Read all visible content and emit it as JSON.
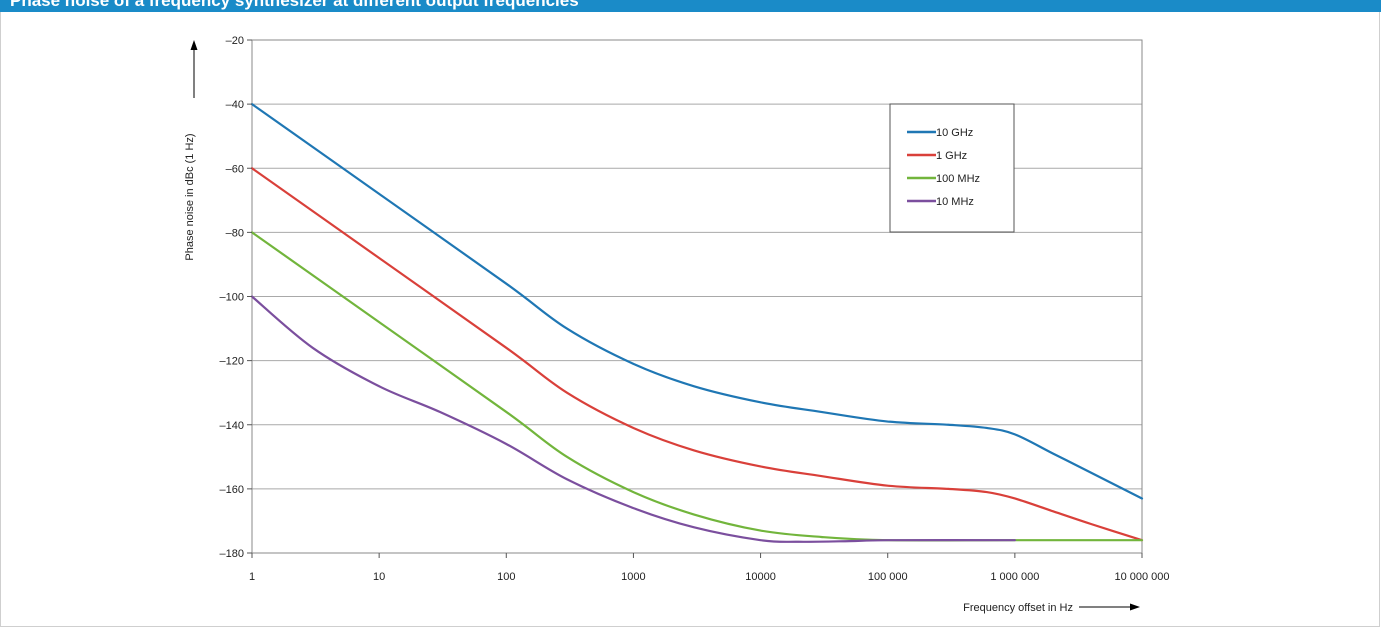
{
  "header": {
    "title": "Phase noise of a frequency synthesizer at different output frequencies"
  },
  "colors": {
    "header_bg": "#1a8bc8",
    "gridline": "#a9a9a9",
    "plot_border": "#8a8a8a"
  },
  "chart_data": {
    "type": "line",
    "title": "",
    "xlabel": "Frequency offset in Hz",
    "ylabel": "Phase noise in dBc (1 Hz)",
    "xscale": "log",
    "xlim": [
      1,
      10000000
    ],
    "ylim": [
      -180,
      -20
    ],
    "grid": "horizontal",
    "legend_position": "top-right",
    "x_ticks": [
      1,
      10,
      100,
      1000,
      10000,
      100000,
      1000000,
      10000000
    ],
    "x_tick_labels": [
      "1",
      "10",
      "100",
      "1000",
      "10000",
      "100 000",
      "1 000 000",
      "10 000 000"
    ],
    "y_ticks": [
      -20,
      -40,
      -60,
      -80,
      -100,
      -120,
      -140,
      -160,
      -180
    ],
    "y_tick_labels": [
      "–20",
      "–40",
      "–60",
      "–80",
      "–100",
      "–120",
      "–140",
      "–160",
      "–180"
    ],
    "series": [
      {
        "name": "10 GHz",
        "color": "#1f77b4",
        "x": [
          1,
          10,
          100,
          300,
          1000,
          3000,
          10000,
          30000,
          100000,
          300000,
          600000,
          1000000,
          2000000,
          4000000,
          10000000
        ],
        "y": [
          -40,
          -68,
          -96,
          -110,
          -121,
          -128,
          -133,
          -136,
          -139,
          -140,
          -141,
          -143,
          -149,
          -155,
          -163
        ]
      },
      {
        "name": "1 GHz",
        "color": "#d9403a",
        "x": [
          1,
          10,
          100,
          300,
          1000,
          3000,
          10000,
          30000,
          100000,
          300000,
          600000,
          1000000,
          2000000,
          4000000,
          10000000
        ],
        "y": [
          -60,
          -88,
          -116,
          -130,
          -141,
          -148,
          -153,
          -156,
          -159,
          -160,
          -161,
          -163,
          -167,
          -171,
          -176
        ]
      },
      {
        "name": "100 MHz",
        "color": "#72b53c",
        "x": [
          1,
          10,
          100,
          300,
          1000,
          3000,
          10000,
          30000,
          100000,
          1000000,
          10000000
        ],
        "y": [
          -80,
          -108,
          -136,
          -150,
          -161,
          -168,
          -173,
          -175,
          -176,
          -176,
          -176
        ]
      },
      {
        "name": "10 MHz",
        "color": "#7b4f9e",
        "x": [
          1,
          3,
          10,
          30,
          100,
          300,
          1000,
          3000,
          10000,
          20000,
          50000,
          100000,
          1000000
        ],
        "y": [
          -100,
          -116,
          -128,
          -136,
          -146,
          -157,
          -166,
          -172,
          -176,
          -176.5,
          -176.3,
          -176,
          -176
        ]
      }
    ]
  }
}
